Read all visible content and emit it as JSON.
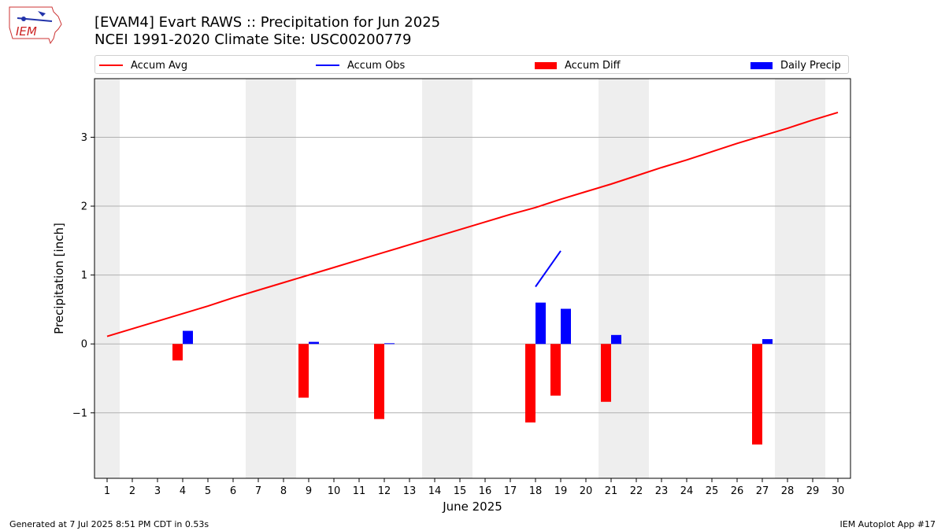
{
  "header": {
    "title_line1": "[EVAM4] Evart RAWS :: Precipitation for Jun 2025",
    "title_line2": "NCEI 1991-2020 Climate Site: USC00200779"
  },
  "logo": {
    "text": "IEM"
  },
  "footer": {
    "generated": "Generated at 7 Jul 2025 8:51 PM CDT in 0.53s",
    "app": "IEM Autoplot App #17"
  },
  "colors": {
    "avg": "#ff0000",
    "obs": "#0000ff",
    "diff": "#ff0000",
    "precip": "#0000ff",
    "weekend": "#eeeeee"
  },
  "chart_data": {
    "type": "bar",
    "xlabel": "June 2025",
    "ylabel": "Precipitation [inch]",
    "ylim": [
      -1.95,
      3.85
    ],
    "yticks": [
      -1,
      0,
      1,
      2,
      3
    ],
    "ytick_labels": [
      "−1",
      "0",
      "1",
      "2",
      "3"
    ],
    "x": [
      1,
      2,
      3,
      4,
      5,
      6,
      7,
      8,
      9,
      10,
      11,
      12,
      13,
      14,
      15,
      16,
      17,
      18,
      19,
      20,
      21,
      22,
      23,
      24,
      25,
      26,
      27,
      28,
      29,
      30
    ],
    "shaded_days": [
      1,
      7,
      8,
      14,
      15,
      21,
      22,
      28,
      29
    ],
    "grid": true,
    "legend_placement": "top",
    "legend": [
      "Accum Avg",
      "Accum Obs",
      "Accum Diff",
      "Daily Precip"
    ],
    "series": [
      {
        "name": "Accum Avg",
        "kind": "line",
        "values": [
          0.11,
          0.22,
          0.33,
          0.44,
          0.55,
          0.67,
          0.78,
          0.89,
          1.0,
          1.11,
          1.22,
          1.33,
          1.44,
          1.55,
          1.66,
          1.77,
          1.88,
          1.98,
          2.1,
          2.21,
          2.32,
          2.44,
          2.56,
          2.67,
          2.79,
          2.91,
          3.02,
          3.13,
          3.25,
          3.36
        ]
      },
      {
        "name": "Accum Obs",
        "kind": "line",
        "points": [
          [
            18,
            0.83
          ],
          [
            19,
            1.35
          ]
        ]
      },
      {
        "name": "Accum Diff",
        "kind": "bar",
        "points": [
          [
            4,
            -0.24
          ],
          [
            9,
            -0.78
          ],
          [
            12,
            -1.09
          ],
          [
            18,
            -1.14
          ],
          [
            19,
            -0.75
          ],
          [
            21,
            -0.84
          ],
          [
            27,
            -1.46
          ]
        ]
      },
      {
        "name": "Daily Precip",
        "kind": "bar",
        "points": [
          [
            4,
            0.19
          ],
          [
            9,
            0.03
          ],
          [
            12,
            0.01
          ],
          [
            18,
            0.6
          ],
          [
            19,
            0.51
          ],
          [
            21,
            0.13
          ],
          [
            27,
            0.07
          ]
        ]
      }
    ]
  }
}
